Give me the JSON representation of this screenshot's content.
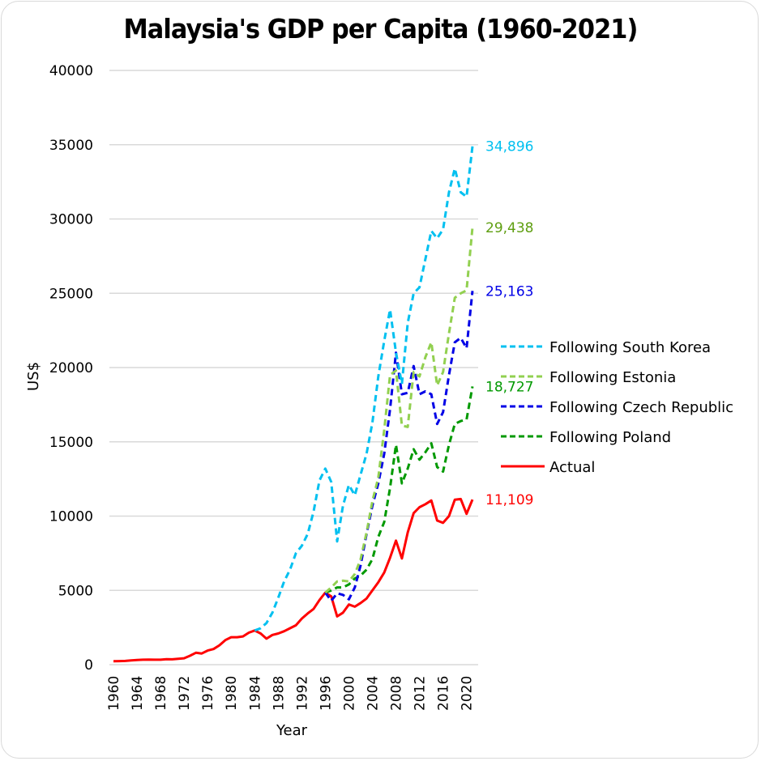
{
  "chart_data": {
    "type": "line",
    "title": "Malaysia's GDP per Capita (1960-2021)",
    "xlabel": "Year",
    "ylabel": "US$",
    "ylim": [
      0,
      40000
    ],
    "xlim": [
      1960,
      2021
    ],
    "yticks": [
      "0",
      "5000",
      "10000",
      "15000",
      "20000",
      "25000",
      "30000",
      "35000",
      "40000"
    ],
    "xticks": [
      "1960",
      "1964",
      "1968",
      "1972",
      "1976",
      "1980",
      "1984",
      "1988",
      "1992",
      "1996",
      "2000",
      "2004",
      "2008",
      "2012",
      "2016",
      "2020"
    ],
    "grid": true,
    "legend_position": "right",
    "series": [
      {
        "name": "Following South Korea",
        "color": "#00C0F0",
        "style": "dashed",
        "end_label": "34,896",
        "start_year": 1984,
        "values": [
          2300,
          2450,
          2800,
          3500,
          4500,
          5600,
          6400,
          7500,
          8000,
          8800,
          10300,
          12400,
          13200,
          12300,
          8300,
          10700,
          12100,
          11400,
          12800,
          14200,
          16300,
          19400,
          21800,
          23900,
          21000,
          18900,
          23000,
          25000,
          25400,
          27300,
          29200,
          28700,
          29300,
          31800,
          33400,
          31800,
          31500,
          34896
        ]
      },
      {
        "name": "Following Estonia",
        "color": "#92D050",
        "label_color": "#5E9E10",
        "style": "dashed",
        "end_label": "29,438",
        "start_year": 1996,
        "values": [
          4850,
          5200,
          5600,
          5650,
          5600,
          6100,
          7100,
          8900,
          11000,
          12600,
          15800,
          19500,
          19800,
          16100,
          16000,
          19700,
          19400,
          20700,
          21700,
          18800,
          19700,
          22300,
          24700,
          25000,
          25200,
          29438
        ]
      },
      {
        "name": "Following Czech Republic",
        "color": "#0000E6",
        "style": "dashed",
        "end_label": "25,163",
        "start_year": 1996,
        "values": [
          4850,
          4300,
          4800,
          4700,
          4400,
          5200,
          6700,
          8800,
          10700,
          12200,
          14200,
          17200,
          21000,
          18200,
          18300,
          20100,
          18200,
          18400,
          18200,
          16200,
          17000,
          19500,
          21700,
          22000,
          21300,
          25163
        ]
      },
      {
        "name": "Following Poland",
        "color": "#009900",
        "style": "dashed",
        "end_label": "18,727",
        "start_year": 1996,
        "values": [
          4850,
          5000,
          5200,
          5200,
          5400,
          5800,
          6000,
          6400,
          7100,
          8600,
          9600,
          11900,
          14800,
          12200,
          13200,
          14500,
          13800,
          14300,
          14900,
          13300,
          13000,
          14800,
          16200,
          16400,
          16500,
          18727
        ]
      },
      {
        "name": "Actual",
        "color": "#FF0000",
        "style": "solid",
        "end_label": "11,109",
        "start_year": 1960,
        "values": [
          235,
          240,
          250,
          290,
          310,
          335,
          340,
          330,
          330,
          370,
          360,
          400,
          430,
          600,
          800,
          750,
          950,
          1050,
          1300,
          1650,
          1850,
          1850,
          1900,
          2150,
          2300,
          2100,
          1750,
          2000,
          2100,
          2250,
          2450,
          2650,
          3100,
          3450,
          3750,
          4350,
          4850,
          4600,
          3250,
          3500,
          4050,
          3900,
          4150,
          4450,
          5000,
          5550,
          6200,
          7200,
          8350,
          7150,
          8900,
          10200,
          10600,
          10800,
          11050,
          9700,
          9550,
          10000,
          11100,
          11150,
          10150,
          11109
        ]
      }
    ]
  }
}
